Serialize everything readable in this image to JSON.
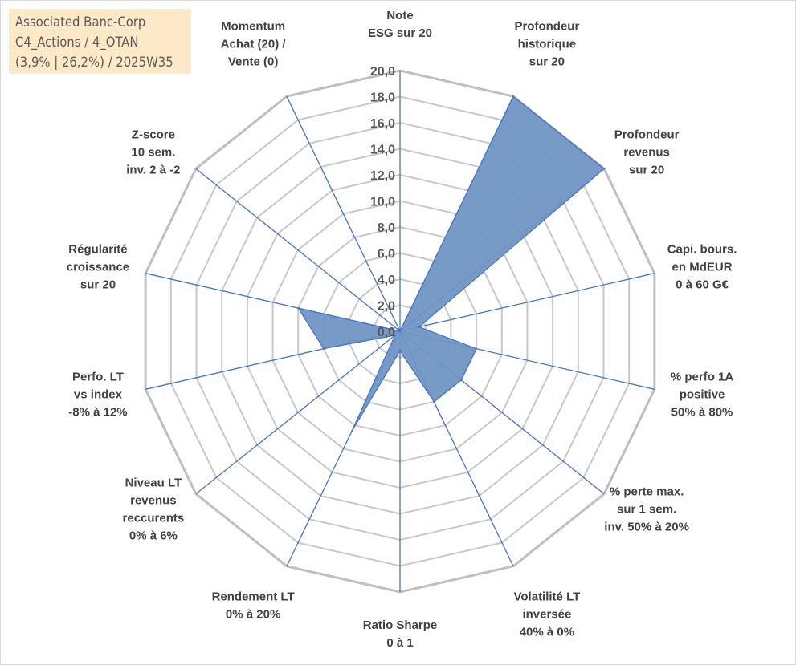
{
  "chart_data": {
    "type": "radar",
    "title_box": [
      "Associated Banc-Corp",
      "C4_Actions / 4_OTAN",
      "(3,9% | 26,2%) / 2025W35"
    ],
    "r_ticks": [
      "0,0",
      "2,0",
      "4,0",
      "6,0",
      "8,0",
      "10,0",
      "12,0",
      "14,0",
      "16,0",
      "18,0",
      "20,0"
    ],
    "rlim": [
      0,
      20
    ],
    "grid": true,
    "axes": [
      {
        "label": [
          "Note",
          "ESG sur 20"
        ],
        "value": 0
      },
      {
        "label": [
          "Profondeur",
          "historique",
          "sur 20"
        ],
        "value": 20
      },
      {
        "label": [
          "Profondeur",
          "revenus",
          "sur 20"
        ],
        "value": 20
      },
      {
        "label": [
          "Capi. bours.",
          "en MdEUR",
          "0 à 60 G€"
        ],
        "value": 1.5
      },
      {
        "label": [
          "% perfo 1A",
          "positive",
          "50% à 80%"
        ],
        "value": 6
      },
      {
        "label": [
          "% perte max.",
          "sur 1 sem.",
          "inv. 50% à 20%"
        ],
        "value": 6
      },
      {
        "label": [
          "Volatilité LT",
          "inversée",
          "40% à 0%"
        ],
        "value": 6
      },
      {
        "label": [
          "Ratio Sharpe",
          "0 à 1"
        ],
        "value": 1.5
      },
      {
        "label": [
          "Rendement LT",
          "0% à 20%"
        ],
        "value": 8.5
      },
      {
        "label": [
          "Niveau LT",
          "revenus",
          "reccurents",
          "0% à 6%"
        ],
        "value": 0.5
      },
      {
        "label": [
          "Perfo. LT",
          "vs index",
          "-8% à 12%"
        ],
        "value": 6
      },
      {
        "label": [
          "Régularité",
          "croissance",
          "sur 20"
        ],
        "value": 8
      },
      {
        "label": [
          "Z-score",
          "10 sem.",
          "inv. 2 à -2"
        ],
        "value": 0
      },
      {
        "label": [
          "Momentum",
          "Achat (20) /",
          "Vente (0)"
        ],
        "value": 0
      }
    ],
    "colors": {
      "fill": "#7095c3",
      "fill_stroke": "#4472c4",
      "spoke": "#4472c4",
      "grid": "#c8c8c8",
      "outer_ring": "#bfbfbf",
      "title_bg": "#fde9c8"
    }
  }
}
